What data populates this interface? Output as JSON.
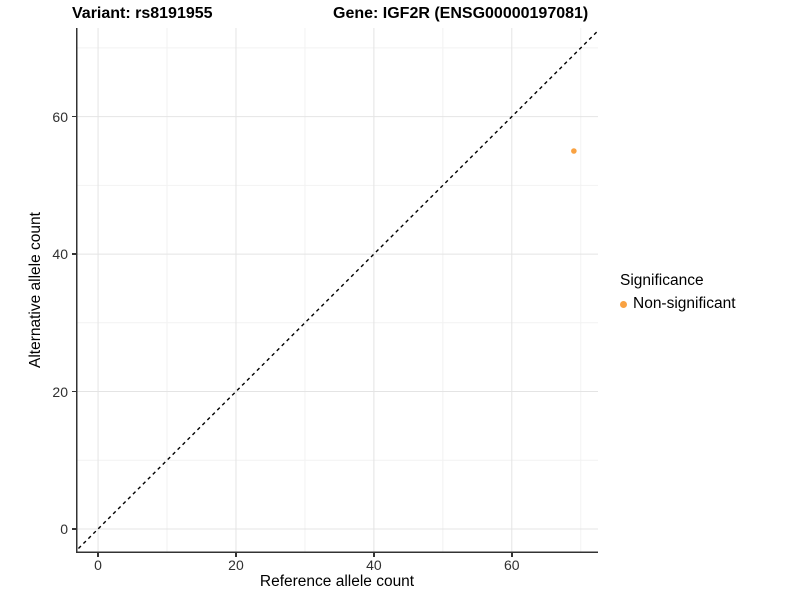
{
  "titles": {
    "variant": "Variant: rs8191955",
    "gene": "Gene: IGF2R (ENSG00000197081)"
  },
  "chart_data": {
    "type": "scatter",
    "title": "Variant: rs8191955 — Gene: IGF2R (ENSG00000197081)",
    "xlabel": "Reference allele count",
    "ylabel": "Alternative allele count",
    "xlim": [
      -3.2,
      72.5
    ],
    "ylim": [
      -3.5,
      72.9
    ],
    "x_ticks": [
      0,
      20,
      40,
      60
    ],
    "y_ticks": [
      0,
      20,
      40,
      60
    ],
    "x_minor_ticks": [
      10,
      30,
      50,
      70
    ],
    "y_minor_ticks": [
      10,
      30,
      50,
      70
    ],
    "grid": true,
    "legend_position": "right",
    "reference_line": {
      "type": "identity",
      "equation": "y = x",
      "style": "dashed",
      "color": "#000000"
    },
    "series": [
      {
        "name": "Non-significant",
        "color": "#F9A242",
        "points": [
          {
            "x": 69,
            "y": 55
          }
        ]
      }
    ]
  },
  "legend": {
    "title": "Significance",
    "items": [
      {
        "label": "Non-significant",
        "color": "#F9A242",
        "marker": "dot-icon"
      }
    ]
  },
  "colors": {
    "background": "#ffffff",
    "axis_line": "#333333",
    "tick_text": "#303030",
    "grid_major": "#e4e4e4",
    "grid_minor": "#f2f2f2",
    "point": "#F9A242",
    "diagonal": "#000000"
  }
}
